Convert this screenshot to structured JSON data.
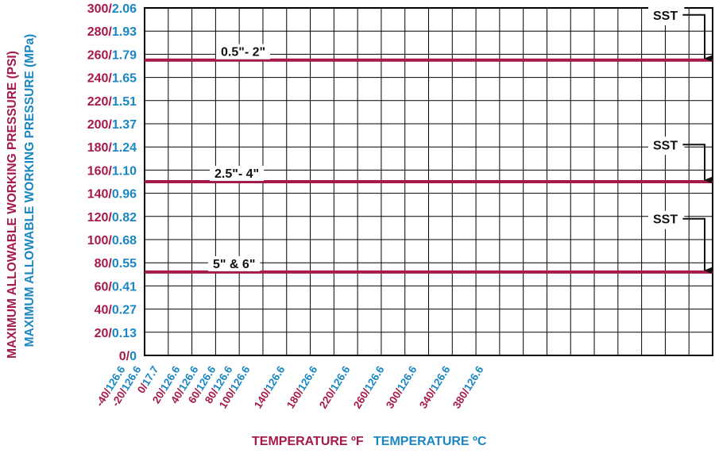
{
  "colors": {
    "psi": "#a6194b",
    "mpa": "#1a87c2",
    "series_line": "#a6194b",
    "grid": "#000000",
    "text": "#111111"
  },
  "chart_data": {
    "type": "line",
    "y_psi_ticks": [
      "0",
      "20",
      "40",
      "60",
      "80",
      "100",
      "120",
      "140",
      "160",
      "180",
      "200",
      "220",
      "240",
      "260",
      "280",
      "300"
    ],
    "y_mpa_ticks": [
      "0",
      "0.13",
      "0.27",
      "0.41",
      "0.55",
      "0.68",
      "0.82",
      "0.96",
      "1.10",
      "1.24",
      "1.37",
      "1.51",
      "1.65",
      "1.79",
      "1.93",
      "2.06"
    ],
    "y_psi_label": "MAXIMUM ALLOWABLE WORKING PRESSURE (PSI)",
    "y_mpa_label": "MAXIMUM ALLOWABLE WORKING PRESSURE (MPa)",
    "x_f_label": "TEMPERATURE ºF",
    "x_c_label": "TEMPERATURE ºC",
    "x_tick_labels": [
      {
        "f": "-40",
        "c": "126.6"
      },
      {
        "f": "-20",
        "c": "126.6"
      },
      {
        "f": "0",
        "c": "17.7"
      },
      {
        "f": "20",
        "c": "126.6"
      },
      {
        "f": "40",
        "c": "126.6"
      },
      {
        "f": "60",
        "c": "126.6"
      },
      {
        "f": "80",
        "c": "126.6"
      },
      {
        "f": "100",
        "c": "126.6"
      },
      {
        "f": "140",
        "c": "126.6"
      },
      {
        "f": "180",
        "c": "126.6"
      },
      {
        "f": "220",
        "c": "126.6"
      },
      {
        "f": "260",
        "c": "126.6"
      },
      {
        "f": "300",
        "c": "126.6"
      },
      {
        "f": "340",
        "c": "126.6"
      },
      {
        "f": "380",
        "c": "126.6"
      }
    ],
    "ylim": [
      0,
      300
    ],
    "grid": true,
    "series": [
      {
        "name": "0.5\"- 2\"",
        "psi": 255
      },
      {
        "name": "2.5\"- 4\"",
        "psi": 150
      },
      {
        "name": "5\" & 6\"",
        "psi": 72
      }
    ],
    "annotations": [
      {
        "text": "SST",
        "target_psi": 255,
        "label_psi": 294
      },
      {
        "text": "SST",
        "target_psi": 150,
        "label_psi": 182
      },
      {
        "text": "SST",
        "target_psi": 72,
        "label_psi": 118
      }
    ]
  }
}
